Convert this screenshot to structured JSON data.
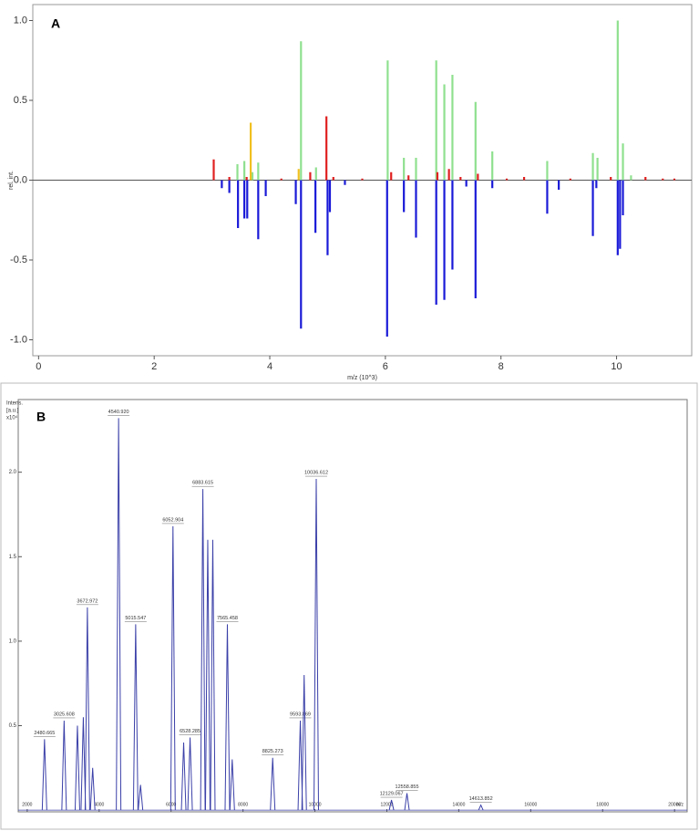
{
  "chart_data": [
    {
      "type": "stick",
      "panel_label": "A",
      "xlabel": "m/z (10^3)",
      "ylabel": "rel. int.",
      "xlim": [
        -0.1,
        11.3
      ],
      "ylim": [
        -1.1,
        1.1
      ],
      "xticks": [
        0,
        2,
        4,
        6,
        8,
        10
      ],
      "yticks": [
        {
          "value": -1,
          "label": "-1.0"
        },
        -0.5,
        {
          "value": 0,
          "label": "0.0"
        },
        0.5,
        {
          "value": 1,
          "label": "1.0"
        }
      ],
      "series": [
        {
          "color": "#8fe08f",
          "x": [
            3.44,
            3.56,
            3.7,
            3.8,
            4.54,
            4.8,
            6.04,
            6.32,
            6.53,
            6.88,
            7.02,
            7.16,
            7.56,
            7.85,
            8.8,
            9.59,
            9.67,
            10.02,
            10.11,
            10.25
          ],
          "values": [
            0.1,
            0.12,
            0.05,
            0.11,
            0.87,
            0.08,
            0.75,
            0.14,
            0.14,
            0.75,
            0.6,
            0.66,
            0.49,
            0.18,
            0.12,
            0.17,
            0.14,
            1.0,
            0.23,
            0.03
          ]
        },
        {
          "color": "#e02020",
          "x": [
            3.03,
            3.3,
            3.6,
            4.2,
            4.7,
            4.98,
            5.1,
            5.6,
            6.1,
            6.4,
            6.9,
            7.1,
            7.3,
            7.6,
            8.1,
            8.4,
            9.2,
            9.9,
            10.5,
            10.8,
            11.0
          ],
          "values": [
            0.13,
            0.02,
            0.02,
            0.01,
            0.05,
            0.4,
            0.02,
            0.01,
            0.05,
            0.03,
            0.05,
            0.07,
            0.02,
            0.04,
            0.01,
            0.02,
            0.01,
            0.02,
            0.02,
            0.01,
            0.01
          ]
        },
        {
          "color": "#f0c020",
          "x": [
            3.67,
            4.5
          ],
          "values": [
            0.36,
            0.07
          ]
        },
        {
          "color": "#1a1ad8",
          "x": [
            3.17,
            3.3,
            3.45,
            3.56,
            3.61,
            3.8,
            3.93,
            4.45,
            4.54,
            4.79,
            5.0,
            5.04,
            5.3,
            6.03,
            6.32,
            6.53,
            6.88,
            7.02,
            7.16,
            7.4,
            7.56,
            7.85,
            8.8,
            9.0,
            9.59,
            9.65,
            10.02,
            10.06,
            10.11
          ],
          "values": [
            -0.05,
            -0.08,
            -0.3,
            -0.24,
            -0.24,
            -0.37,
            -0.1,
            -0.15,
            -0.93,
            -0.33,
            -0.47,
            -0.2,
            -0.03,
            -0.98,
            -0.2,
            -0.36,
            -0.78,
            -0.75,
            -0.56,
            -0.04,
            -0.74,
            -0.05,
            -0.21,
            -0.06,
            -0.35,
            -0.05,
            -0.47,
            -0.43,
            -0.22
          ]
        }
      ]
    },
    {
      "type": "spectrum",
      "panel_label": "B",
      "xlabel": "m/z",
      "ylabel": [
        "Intens.",
        "[a.u.]",
        "x10⁴"
      ],
      "xlim": [
        1750,
        20350
      ],
      "ylim": [
        -0.01,
        2.43
      ],
      "xticks": [
        2000,
        4000,
        6000,
        8000,
        10000,
        12000,
        14000,
        16000,
        18000,
        20000
      ],
      "yticks": [
        0.5,
        {
          "value": 1,
          "label": "1.0"
        },
        1.5,
        {
          "value": 2,
          "label": "2.0"
        }
      ],
      "color": "#3b40a8",
      "x": [
        2480.665,
        3025.608,
        3396,
        3560,
        3672.972,
        3820,
        4540.92,
        5015.547,
        5150,
        6052.904,
        6350,
        6528.285,
        6883.615,
        7020,
        7160,
        7565.458,
        7700,
        8825.273,
        9593.869,
        9700,
        10036.612,
        12129.067,
        12558.855,
        14613.852
      ],
      "values": [
        0.42,
        0.53,
        0.5,
        0.55,
        1.2,
        0.25,
        2.32,
        1.1,
        0.15,
        1.68,
        0.4,
        0.43,
        1.9,
        1.6,
        1.6,
        1.1,
        0.3,
        0.31,
        0.53,
        0.8,
        1.96,
        0.06,
        0.1,
        0.03
      ],
      "x_labels": [
        "2480.665",
        "3025.608",
        null,
        null,
        "3672.972",
        null,
        "4540.920",
        "5015.547",
        null,
        "6052.904",
        null,
        "6528.285",
        "6883.615",
        null,
        null,
        "7565.458",
        null,
        "8825.273",
        "9593.869",
        null,
        "10036.612",
        "12129.067",
        "12558.855",
        "14613.852"
      ]
    }
  ]
}
